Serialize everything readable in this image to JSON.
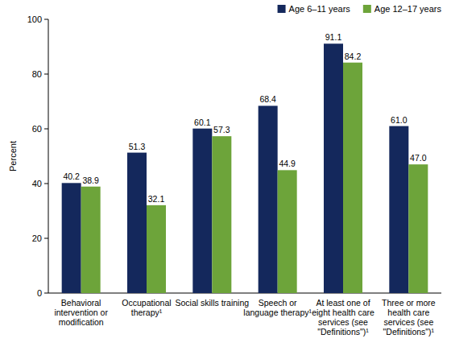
{
  "chart_data": {
    "type": "bar",
    "y_label": "Percent",
    "categories": [
      "Behavioral intervention or modification",
      "Occupational therapy¹",
      "Social skills training",
      "Speech or language therapy¹",
      "At least one of eight health care services (see \"Definitions\")¹",
      "Three or more health care services (see \"Definitions\")¹"
    ],
    "series": [
      {
        "name": "Age 6–11 years",
        "color": "#14285c",
        "values": [
          40.2,
          51.3,
          60.1,
          68.4,
          91.1,
          61.0
        ],
        "value_labels": [
          "40.2",
          "51.3",
          "60.1",
          "68.4",
          "91.1",
          "61.0"
        ]
      },
      {
        "name": "Age 12–17 years",
        "color": "#6da43a",
        "values": [
          38.9,
          32.1,
          57.3,
          44.9,
          84.2,
          47.0
        ],
        "value_labels": [
          "38.9",
          "32.1",
          "57.3",
          "44.9",
          "84.2",
          "47.0"
        ]
      }
    ],
    "ylim": [
      0,
      100
    ],
    "yticks": [
      0,
      20,
      40,
      60,
      80,
      100
    ],
    "grid": false,
    "legend": "top-right",
    "data_labels": true
  }
}
